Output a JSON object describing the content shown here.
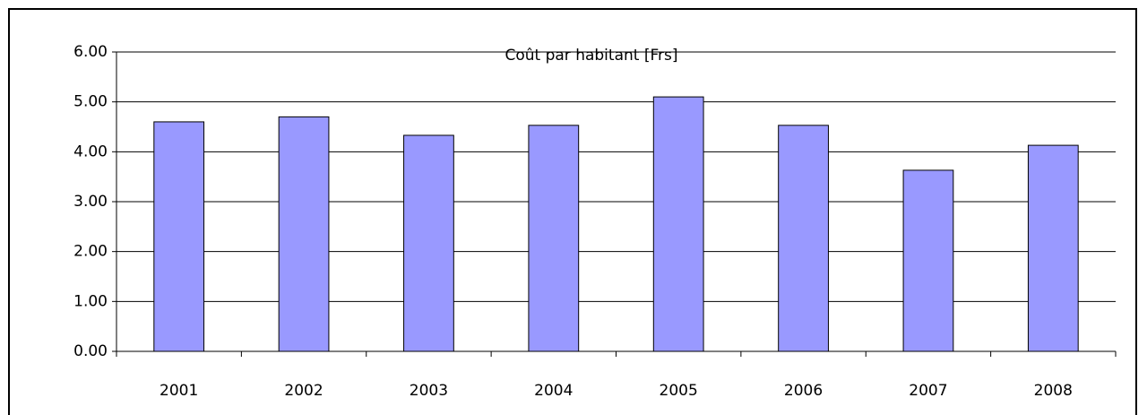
{
  "chart_data": {
    "type": "bar",
    "title": "Coût par habitant [Frs]",
    "categories": [
      "2001",
      "2002",
      "2003",
      "2004",
      "2005",
      "2006",
      "2007",
      "2008"
    ],
    "values": [
      4.6,
      4.7,
      4.33,
      4.53,
      5.1,
      4.53,
      3.63,
      4.13
    ],
    "color": "#9999ff",
    "ylim": [
      0,
      6
    ],
    "yticks": [
      {
        "value": 0,
        "label": "0.00"
      },
      {
        "value": 1,
        "label": "1.00"
      },
      {
        "value": 2,
        "label": "2.00"
      },
      {
        "value": 3,
        "label": "3.00"
      },
      {
        "value": 4,
        "label": "4.00"
      },
      {
        "value": 5,
        "label": "5.00"
      },
      {
        "value": 6,
        "label": "6.00"
      }
    ],
    "grid": true
  }
}
